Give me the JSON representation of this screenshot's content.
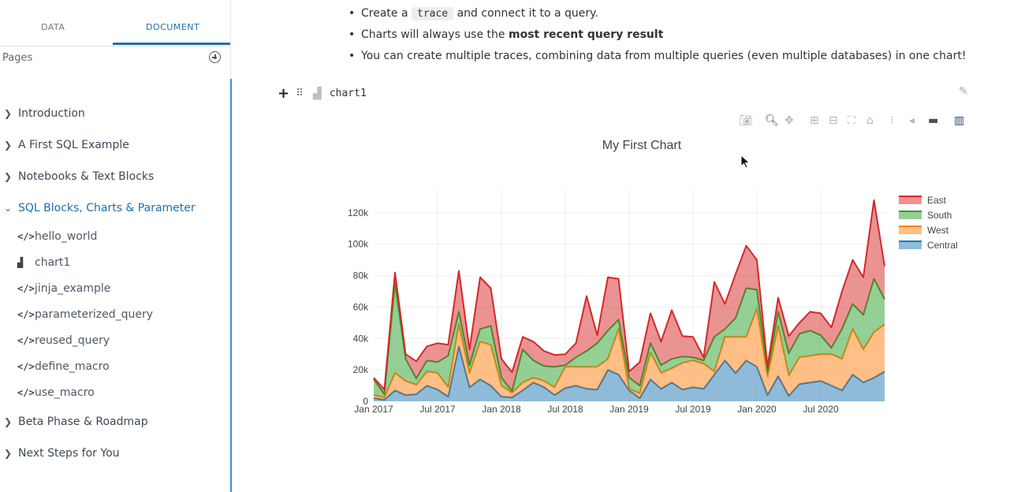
{
  "sidebar": {
    "tabs": [
      {
        "label": "DATA"
      },
      {
        "label": "DOCUMENT"
      }
    ],
    "pages_label": "Pages",
    "sections": [
      {
        "label": "Introduction"
      },
      {
        "label": "A First SQL Example"
      },
      {
        "label": "Notebooks & Text Blocks"
      },
      {
        "label": "SQL Blocks, Charts & Parameter"
      },
      {
        "label": "Beta Phase & Roadmap"
      },
      {
        "label": "Next Steps for You"
      }
    ],
    "sub_items": [
      {
        "label": "hello_world",
        "icon": "code-icon"
      },
      {
        "label": "chart1",
        "icon": "chart-icon"
      },
      {
        "label": "jinja_example",
        "icon": "code-icon"
      },
      {
        "label": "parameterized_query",
        "icon": "code-icon"
      },
      {
        "label": "reused_query",
        "icon": "code-icon"
      },
      {
        "label": "define_macro",
        "icon": "code-icon"
      },
      {
        "label": "use_macro",
        "icon": "code-icon"
      }
    ]
  },
  "doc": {
    "bullet1_pre": "Create a ",
    "bullet1_code": "trace",
    "bullet1_post": " and connect it to a query.",
    "bullet2_pre": "Charts will always use the ",
    "bullet2_bold": "most recent query result",
    "bullet3": "You can create multiple traces, combining data from multiple queries (even multiple databases) in one chart!",
    "block_name": "chart1"
  },
  "colors": {
    "accent": "#1f6fae",
    "east": "#d62728",
    "south": "#2ca02c",
    "west": "#ff7f0e",
    "central": "#1f77b4"
  },
  "chart_data": {
    "type": "area",
    "title": "My First Chart",
    "ylim": [
      0,
      135000
    ],
    "yticks": [
      {
        "v": 0,
        "label": "0"
      },
      {
        "v": 20000,
        "label": "20k"
      },
      {
        "v": 40000,
        "label": "40k"
      },
      {
        "v": 60000,
        "label": "60k"
      },
      {
        "v": 80000,
        "label": "80k"
      },
      {
        "v": 100000,
        "label": "100k"
      },
      {
        "v": 120000,
        "label": "120k"
      }
    ],
    "xticks": [
      {
        "i": 0,
        "label": "Jan 2017"
      },
      {
        "i": 6,
        "label": "Jul 2017"
      },
      {
        "i": 12,
        "label": "Jan 2018"
      },
      {
        "i": 18,
        "label": "Jul 2018"
      },
      {
        "i": 24,
        "label": "Jan 2019"
      },
      {
        "i": 30,
        "label": "Jul 2019"
      },
      {
        "i": 36,
        "label": "Jan 2020"
      },
      {
        "i": 42,
        "label": "Jul 2020"
      }
    ],
    "legend_position": "top-right",
    "stacked_order": [
      "Central",
      "West",
      "South",
      "East"
    ],
    "series": [
      {
        "name": "Central",
        "color": "#1f77b4",
        "values": [
          2000,
          1000,
          7000,
          4000,
          4500,
          10000,
          7500,
          3000,
          35000,
          9000,
          14000,
          10000,
          3000,
          2500,
          7000,
          12000,
          9000,
          4000,
          8500,
          10000,
          8000,
          7500,
          20000,
          17000,
          7000,
          2000,
          14000,
          8000,
          12000,
          7500,
          9000,
          8000,
          17000,
          26000,
          18000,
          26000,
          22000,
          4000,
          16000,
          3500,
          11000,
          12000,
          13000,
          10000,
          7000,
          17000,
          12000,
          15000,
          19000
        ]
      },
      {
        "name": "West",
        "color": "#ff7f0e",
        "values": [
          2000,
          1500,
          11000,
          9000,
          6000,
          9000,
          10500,
          6000,
          14000,
          9000,
          24000,
          26000,
          7000,
          3000,
          5000,
          3000,
          4000,
          5000,
          13500,
          12000,
          14000,
          14500,
          7000,
          29000,
          1000,
          3000,
          17000,
          10000,
          9000,
          17000,
          17000,
          16000,
          2000,
          15000,
          23000,
          15000,
          37000,
          12000,
          32000,
          13000,
          17000,
          17000,
          17000,
          20000,
          20000,
          29000,
          21000,
          29000,
          30000
        ]
      },
      {
        "name": "South",
        "color": "#2ca02c",
        "values": [
          10000,
          2000,
          57000,
          14000,
          4000,
          7000,
          7000,
          20000,
          8000,
          5000,
          8000,
          12000,
          5000,
          1000,
          21000,
          11000,
          9500,
          13000,
          1000,
          6000,
          10000,
          15000,
          18000,
          6000,
          7000,
          5000,
          6000,
          5000,
          6000,
          4000,
          2000,
          2000,
          22000,
          5000,
          12000,
          31000,
          12000,
          3000,
          9000,
          14000,
          15000,
          16000,
          12000,
          4000,
          19000,
          16000,
          22000,
          34000,
          16000
        ]
      },
      {
        "name": "East",
        "color": "#d62728",
        "values": [
          1000,
          3000,
          7000,
          3000,
          11000,
          9000,
          12000,
          7000,
          26000,
          10000,
          33000,
          24000,
          12000,
          12000,
          8000,
          12000,
          9500,
          7500,
          7000,
          9000,
          35000,
          5000,
          34000,
          26000,
          4000,
          15000,
          19000,
          15000,
          31000,
          13000,
          13000,
          2000,
          35000,
          16000,
          28000,
          27000,
          19000,
          3000,
          9000,
          11000,
          7000,
          12000,
          14000,
          13000,
          24000,
          28000,
          24000,
          50000,
          21000
        ]
      }
    ]
  }
}
